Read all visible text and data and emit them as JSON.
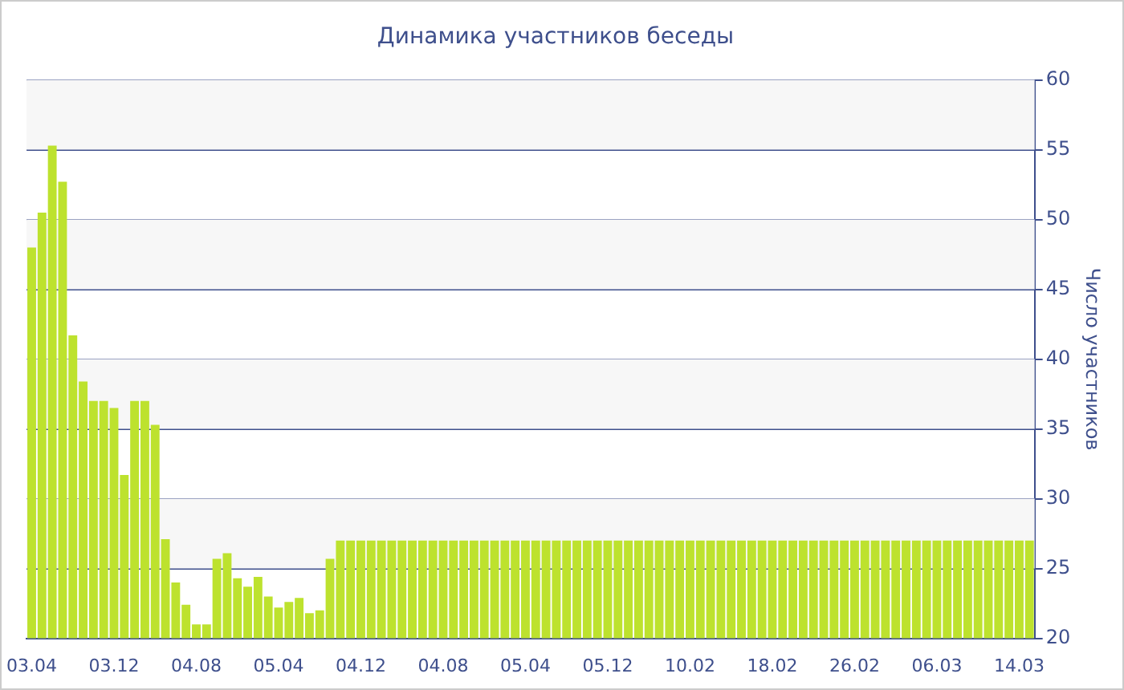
{
  "chart_data": {
    "type": "bar",
    "title": "Динамика участников беседы",
    "ylabel": "Число участников",
    "categories": [
      "03.04",
      null,
      null,
      null,
      null,
      null,
      null,
      null,
      "03.12",
      null,
      null,
      null,
      null,
      null,
      null,
      null,
      "04.08",
      null,
      null,
      null,
      null,
      null,
      null,
      null,
      "05.04",
      null,
      null,
      null,
      null,
      null,
      null,
      null,
      "04.12",
      null,
      null,
      null,
      null,
      null,
      null,
      null,
      "04.08",
      null,
      null,
      null,
      null,
      null,
      null,
      null,
      "05.04",
      null,
      null,
      null,
      null,
      null,
      null,
      null,
      "05.12",
      null,
      null,
      null,
      null,
      null,
      null,
      null,
      "10.02",
      null,
      null,
      null,
      null,
      null,
      null,
      null,
      "18.02",
      null,
      null,
      null,
      null,
      null,
      null,
      null,
      "26.02",
      null,
      null,
      null,
      null,
      null,
      null,
      null,
      "06.03",
      null,
      null,
      null,
      null,
      null,
      null,
      null,
      "14.03",
      null
    ],
    "values": [
      48,
      50.5,
      55.3,
      52.7,
      41.7,
      38.4,
      37,
      37,
      36.5,
      31.7,
      37,
      37,
      35.3,
      27.1,
      24,
      22.4,
      21,
      21,
      25.7,
      26.1,
      24.3,
      23.7,
      24.4,
      23,
      22.2,
      22.6,
      22.9,
      21.8,
      22,
      25.7,
      27,
      27,
      27,
      27,
      27,
      27,
      27,
      27,
      27,
      27,
      27,
      27,
      27,
      27,
      27,
      27,
      27,
      27,
      27,
      27,
      27,
      27,
      27,
      27,
      27,
      27,
      27,
      27,
      27,
      27,
      27,
      27,
      27,
      27,
      27,
      27,
      27,
      27,
      27,
      27,
      27,
      27,
      27,
      27,
      27,
      27,
      27,
      27,
      27,
      27,
      27,
      27,
      27,
      27,
      27,
      27,
      27,
      27,
      27,
      27,
      27,
      27,
      27,
      27,
      27,
      27,
      27,
      27
    ],
    "color": "#bde22e",
    "ylim": [
      20,
      60
    ],
    "yticks": [
      20,
      25,
      30,
      35,
      40,
      45,
      50,
      55,
      60
    ],
    "grid": true
  }
}
